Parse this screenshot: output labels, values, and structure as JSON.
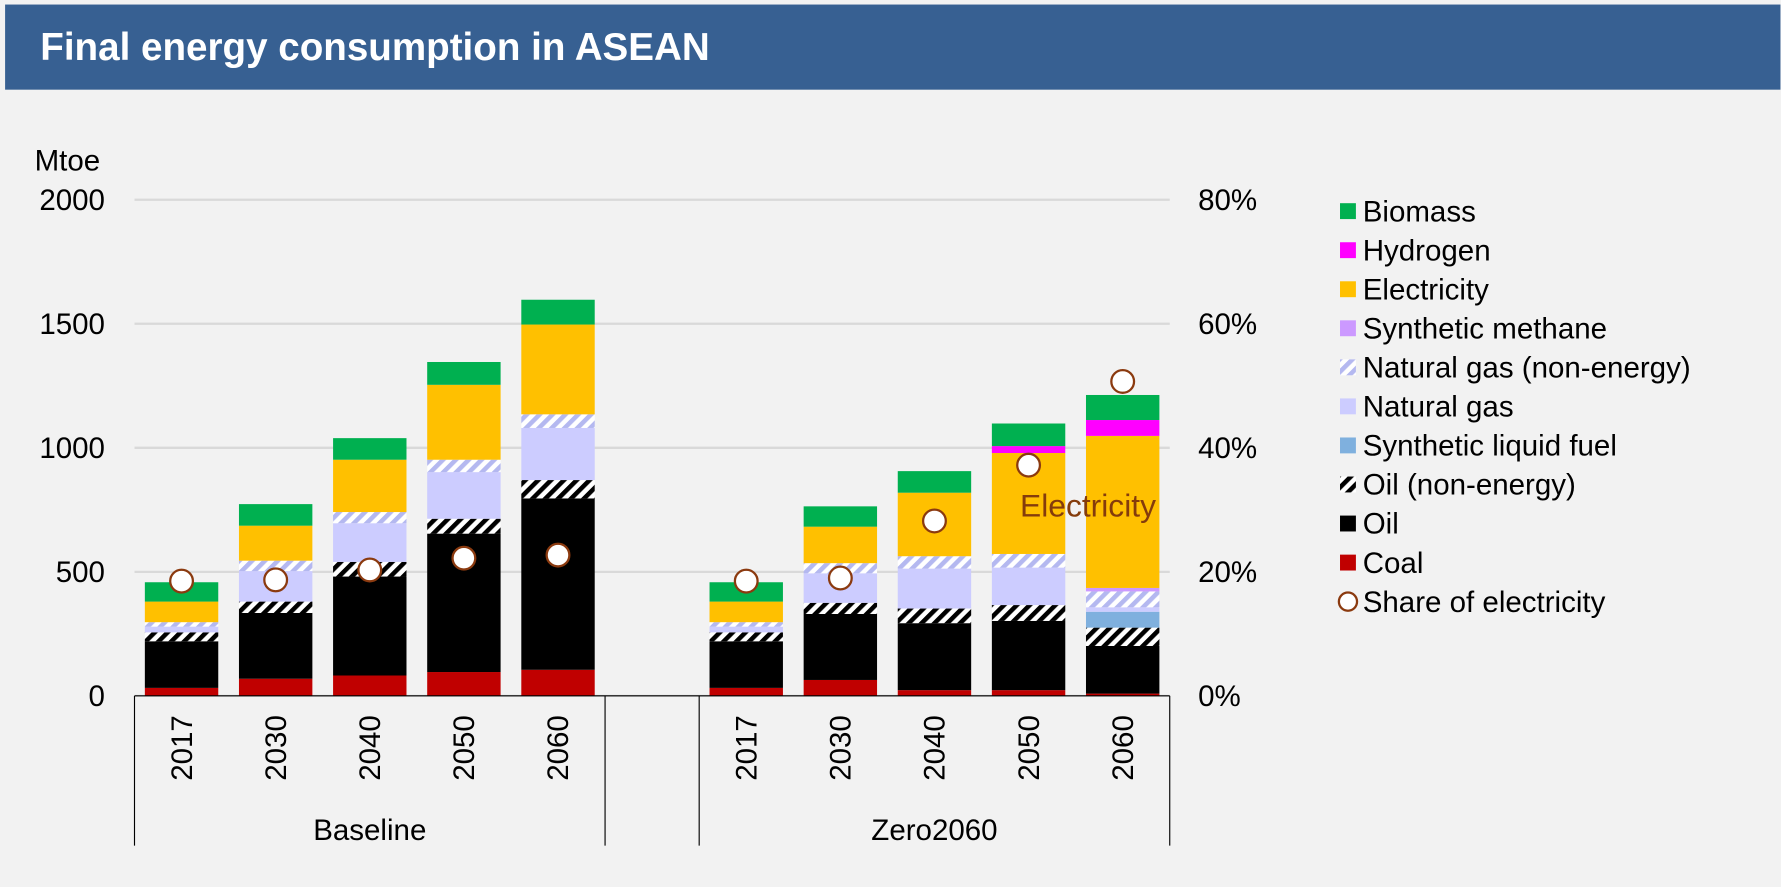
{
  "chart_data": {
    "type": "bar",
    "stacked": true,
    "title": "Final energy consumption in ASEAN",
    "y_label": "Mtoe",
    "annotation": "Electricity",
    "categories": [
      "2017",
      "2030",
      "2040",
      "2050",
      "2060",
      null,
      "2017",
      "2030",
      "2040",
      "2050",
      "2060"
    ],
    "groups": [
      "Baseline",
      "Zero2060"
    ],
    "ylim": [
      0,
      2000
    ],
    "yticks": [
      0,
      500,
      1000,
      1500,
      2000
    ],
    "y2lim": [
      0,
      80
    ],
    "y2ticks": [
      {
        "value": 0,
        "label": "0%"
      },
      {
        "value": 20,
        "label": "20%"
      },
      {
        "value": 40,
        "label": "40%"
      },
      {
        "value": 60,
        "label": "60%"
      },
      {
        "value": 80,
        "label": "80%"
      }
    ],
    "grid": true,
    "legend": "right",
    "series": [
      {
        "name": "Coal",
        "color": "#c00000",
        "values": [
          32,
          69,
          82,
          96,
          105,
          null,
          32,
          64,
          23,
          23,
          9
        ]
      },
      {
        "name": "Oil",
        "color": "#000000",
        "values": [
          188,
          265,
          399,
          558,
          691,
          null,
          188,
          266,
          270,
          279,
          192
        ]
      },
      {
        "name": "Oil (non-energy)",
        "color": "#000000",
        "hatch": true,
        "values": [
          36,
          46,
          59,
          60,
          74,
          null,
          36,
          45,
          59,
          64,
          74
        ]
      },
      {
        "name": "Synthetic liquid fuel",
        "color": "#7fb0de",
        "values": [
          0,
          0,
          0,
          0,
          0,
          null,
          0,
          0,
          0,
          0,
          64
        ]
      },
      {
        "name": "Natural gas",
        "color": "#ccccff",
        "values": [
          23,
          123,
          156,
          188,
          210,
          null,
          23,
          119,
          161,
          151,
          18
        ]
      },
      {
        "name": "Natural gas (non-energy)",
        "color": "#b4b8f0",
        "hatch": true,
        "values": [
          18,
          42,
          45,
          50,
          55,
          null,
          18,
          41,
          50,
          55,
          64
        ]
      },
      {
        "name": "Synthetic methane",
        "color": "#cc99ff",
        "values": [
          0,
          0,
          0,
          0,
          0,
          null,
          0,
          0,
          0,
          0,
          14
        ]
      },
      {
        "name": "Electricity",
        "color": "#ffc000",
        "values": [
          83,
          141,
          211,
          302,
          362,
          null,
          83,
          147,
          256,
          407,
          613
        ]
      },
      {
        "name": "Hydrogen",
        "color": "#ff00ff",
        "values": [
          0,
          0,
          0,
          0,
          0,
          null,
          0,
          0,
          0,
          28,
          64
        ]
      },
      {
        "name": "Biomass",
        "color": "#00b050",
        "values": [
          78,
          87,
          87,
          92,
          100,
          null,
          78,
          82,
          87,
          91,
          101
        ]
      },
      {
        "name": "Share of electricity",
        "type": "scatter",
        "axis": "y2",
        "color": "#8b3a0f",
        "values": [
          18.5,
          18.7,
          20.3,
          22.2,
          22.7,
          null,
          18.5,
          19.0,
          28.2,
          37.2,
          50.7
        ]
      }
    ]
  }
}
